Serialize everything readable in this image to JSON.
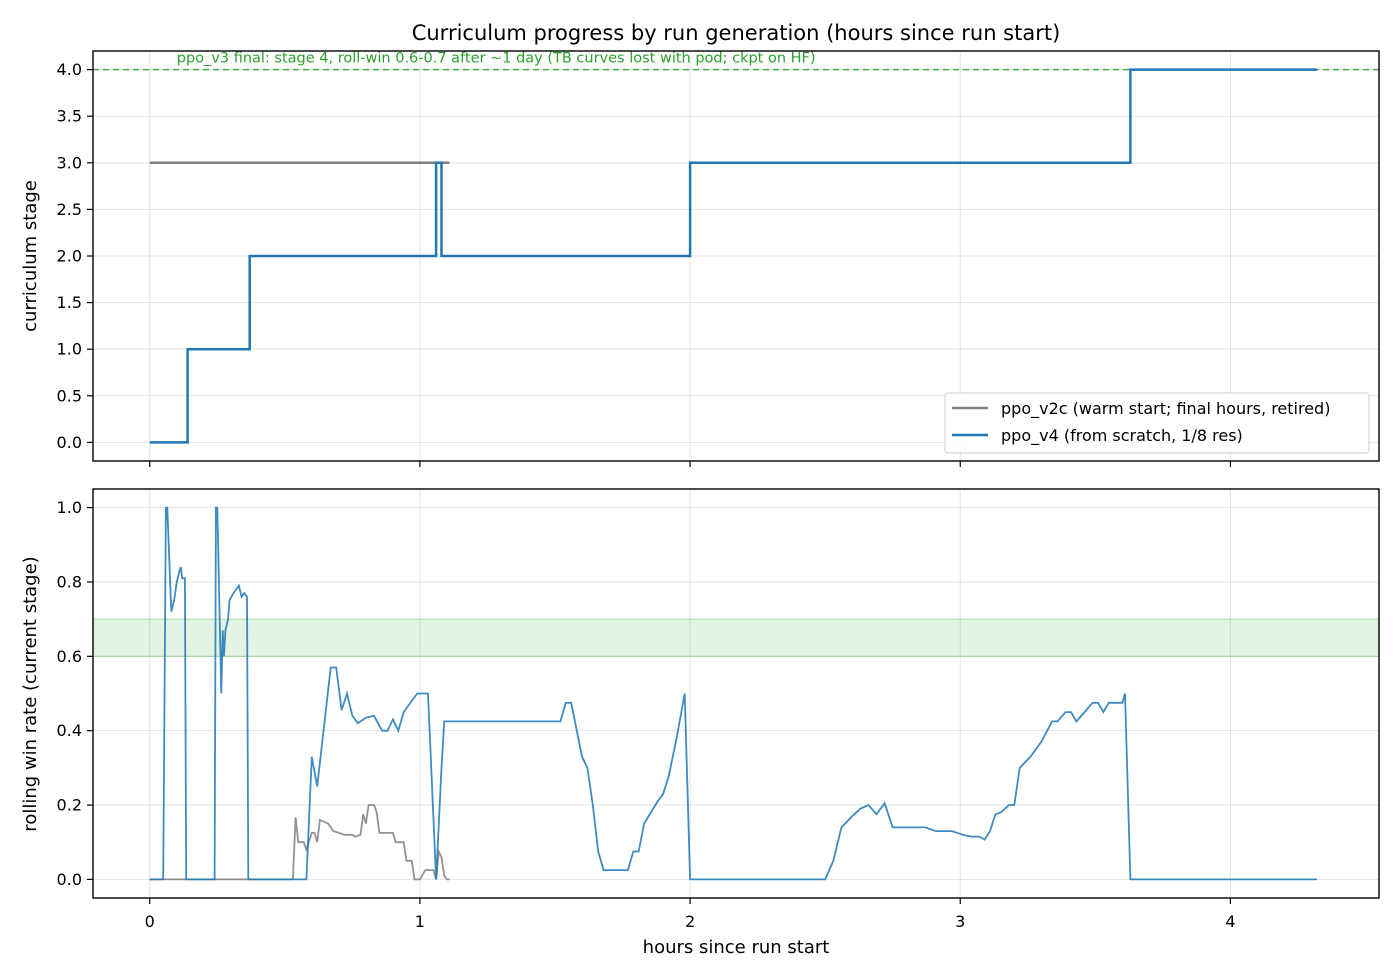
{
  "chart_data": [
    {
      "type": "line",
      "title": "Curriculum progress by run generation (hours since run start)",
      "xlabel": "",
      "ylabel": "curriculum stage",
      "xlim": [
        -0.21,
        4.55
      ],
      "ylim": [
        -0.2,
        4.2
      ],
      "xticks": [
        0,
        1,
        2,
        3,
        4
      ],
      "yticks": [
        0.0,
        0.5,
        1.0,
        1.5,
        2.0,
        2.5,
        3.0,
        3.5,
        4.0
      ],
      "grid": true,
      "legend_position": "lower right",
      "reference_line": {
        "y": 4.0,
        "color": "#2ca02c",
        "style": "dashed"
      },
      "annotation": {
        "text": "ppo_v3 final: stage 4, roll-win 0.6-0.7 after ~1 day (TB curves lost with pod; ckpt on HF)",
        "x": 0.1,
        "y": 4.0
      },
      "series": [
        {
          "name": "ppo_v2c (warm start; final hours, retired)",
          "color": "#808080",
          "step": true,
          "points": [
            [
              0,
              3.0
            ],
            [
              1.11,
              3.0
            ]
          ]
        },
        {
          "name": "ppo_v4 (from scratch, 1/8 res)",
          "color": "#1f77b4",
          "step": true,
          "points": [
            [
              0,
              0.0
            ],
            [
              0.14,
              1.0
            ],
            [
              0.37,
              2.0
            ],
            [
              1.06,
              3.0
            ],
            [
              1.08,
              2.0
            ],
            [
              2.0,
              3.0
            ],
            [
              3.63,
              4.0
            ],
            [
              4.32,
              4.0
            ]
          ]
        }
      ]
    },
    {
      "type": "line",
      "title": "",
      "xlabel": "hours since run start",
      "ylabel": "rolling win rate (current stage)",
      "xlim": [
        -0.21,
        4.55
      ],
      "ylim": [
        -0.05,
        1.05
      ],
      "xticks": [
        0,
        1,
        2,
        3,
        4
      ],
      "yticks": [
        0.0,
        0.2,
        0.4,
        0.6,
        0.8,
        1.0
      ],
      "grid": true,
      "shaded_band": {
        "y_from": 0.6,
        "y_to": 0.7,
        "color": "#2ca02c"
      },
      "series": [
        {
          "name": "ppo_v2c (warm start; final hours, retired)",
          "color": "#808080",
          "points": [
            [
              0,
              0.0
            ],
            [
              0.53,
              0.0
            ],
            [
              0.54,
              0.167
            ],
            [
              0.55,
              0.1
            ],
            [
              0.57,
              0.1
            ],
            [
              0.58,
              0.08
            ],
            [
              0.6,
              0.125
            ],
            [
              0.61,
              0.125
            ],
            [
              0.62,
              0.1
            ],
            [
              0.63,
              0.16
            ],
            [
              0.66,
              0.15
            ],
            [
              0.68,
              0.13
            ],
            [
              0.7,
              0.125
            ],
            [
              0.72,
              0.12
            ],
            [
              0.75,
              0.12
            ],
            [
              0.76,
              0.115
            ],
            [
              0.78,
              0.12
            ],
            [
              0.79,
              0.175
            ],
            [
              0.8,
              0.15
            ],
            [
              0.81,
              0.2
            ],
            [
              0.83,
              0.2
            ],
            [
              0.84,
              0.18
            ],
            [
              0.85,
              0.125
            ],
            [
              0.9,
              0.125
            ],
            [
              0.91,
              0.1
            ],
            [
              0.94,
              0.1
            ],
            [
              0.95,
              0.05
            ],
            [
              0.97,
              0.05
            ],
            [
              0.98,
              0.0
            ],
            [
              1.0,
              0.0
            ],
            [
              1.02,
              0.025
            ],
            [
              1.05,
              0.025
            ],
            [
              1.06,
              0.0
            ],
            [
              1.07,
              0.075
            ],
            [
              1.08,
              0.06
            ],
            [
              1.09,
              0.01
            ],
            [
              1.1,
              0.0
            ],
            [
              1.11,
              0.0
            ]
          ]
        },
        {
          "name": "ppo_v4 (from scratch, 1/8 res)",
          "color": "#1f77b4",
          "points": [
            [
              0,
              0.0
            ],
            [
              0.05,
              0.0
            ],
            [
              0.06,
              1.0
            ],
            [
              0.065,
              1.0
            ],
            [
              0.08,
              0.72
            ],
            [
              0.09,
              0.75
            ],
            [
              0.1,
              0.8
            ],
            [
              0.11,
              0.83
            ],
            [
              0.115,
              0.84
            ],
            [
              0.12,
              0.81
            ],
            [
              0.13,
              0.81
            ],
            [
              0.135,
              0.0
            ],
            [
              0.24,
              0.0
            ],
            [
              0.245,
              1.0
            ],
            [
              0.25,
              1.0
            ],
            [
              0.265,
              0.5
            ],
            [
              0.27,
              0.67
            ],
            [
              0.275,
              0.6
            ],
            [
              0.28,
              0.67
            ],
            [
              0.29,
              0.7
            ],
            [
              0.295,
              0.75
            ],
            [
              0.31,
              0.77
            ],
            [
              0.33,
              0.79
            ],
            [
              0.34,
              0.76
            ],
            [
              0.35,
              0.77
            ],
            [
              0.36,
              0.76
            ],
            [
              0.365,
              0.0
            ],
            [
              0.53,
              0.0
            ],
            [
              0.58,
              0.0
            ],
            [
              0.6,
              0.33
            ],
            [
              0.62,
              0.25
            ],
            [
              0.67,
              0.57
            ],
            [
              0.69,
              0.57
            ],
            [
              0.71,
              0.455
            ],
            [
              0.73,
              0.5
            ],
            [
              0.75,
              0.44
            ],
            [
              0.77,
              0.42
            ],
            [
              0.8,
              0.435
            ],
            [
              0.83,
              0.44
            ],
            [
              0.86,
              0.4
            ],
            [
              0.88,
              0.4
            ],
            [
              0.9,
              0.43
            ],
            [
              0.92,
              0.4
            ],
            [
              0.94,
              0.45
            ],
            [
              0.97,
              0.48
            ],
            [
              0.99,
              0.5
            ],
            [
              1.03,
              0.5
            ],
            [
              1.06,
              0.0
            ],
            [
              1.08,
              0.3
            ],
            [
              1.09,
              0.425
            ],
            [
              1.52,
              0.425
            ],
            [
              1.54,
              0.475
            ],
            [
              1.56,
              0.475
            ],
            [
              1.6,
              0.33
            ],
            [
              1.62,
              0.3
            ],
            [
              1.64,
              0.2
            ],
            [
              1.66,
              0.075
            ],
            [
              1.68,
              0.025
            ],
            [
              1.77,
              0.025
            ],
            [
              1.79,
              0.075
            ],
            [
              1.81,
              0.075
            ],
            [
              1.83,
              0.15
            ],
            [
              1.88,
              0.21
            ],
            [
              1.9,
              0.23
            ],
            [
              1.92,
              0.275
            ],
            [
              1.95,
              0.38
            ],
            [
              1.98,
              0.5
            ],
            [
              2.0,
              0.0
            ],
            [
              2.5,
              0.0
            ],
            [
              2.53,
              0.05
            ],
            [
              2.56,
              0.14
            ],
            [
              2.6,
              0.17
            ],
            [
              2.63,
              0.19
            ],
            [
              2.66,
              0.2
            ],
            [
              2.69,
              0.175
            ],
            [
              2.72,
              0.205
            ],
            [
              2.75,
              0.14
            ],
            [
              2.87,
              0.14
            ],
            [
              2.91,
              0.13
            ],
            [
              2.97,
              0.13
            ],
            [
              3.01,
              0.12
            ],
            [
              3.04,
              0.115
            ],
            [
              3.07,
              0.115
            ],
            [
              3.09,
              0.107
            ],
            [
              3.11,
              0.13
            ],
            [
              3.13,
              0.175
            ],
            [
              3.15,
              0.18
            ],
            [
              3.18,
              0.2
            ],
            [
              3.2,
              0.2
            ],
            [
              3.22,
              0.3
            ],
            [
              3.26,
              0.33
            ],
            [
              3.3,
              0.37
            ],
            [
              3.34,
              0.425
            ],
            [
              3.36,
              0.425
            ],
            [
              3.39,
              0.45
            ],
            [
              3.41,
              0.45
            ],
            [
              3.43,
              0.425
            ],
            [
              3.46,
              0.45
            ],
            [
              3.49,
              0.475
            ],
            [
              3.51,
              0.475
            ],
            [
              3.53,
              0.45
            ],
            [
              3.55,
              0.475
            ],
            [
              3.6,
              0.475
            ],
            [
              3.61,
              0.5
            ],
            [
              3.63,
              0.0
            ],
            [
              4.32,
              0.0
            ]
          ]
        }
      ]
    }
  ]
}
